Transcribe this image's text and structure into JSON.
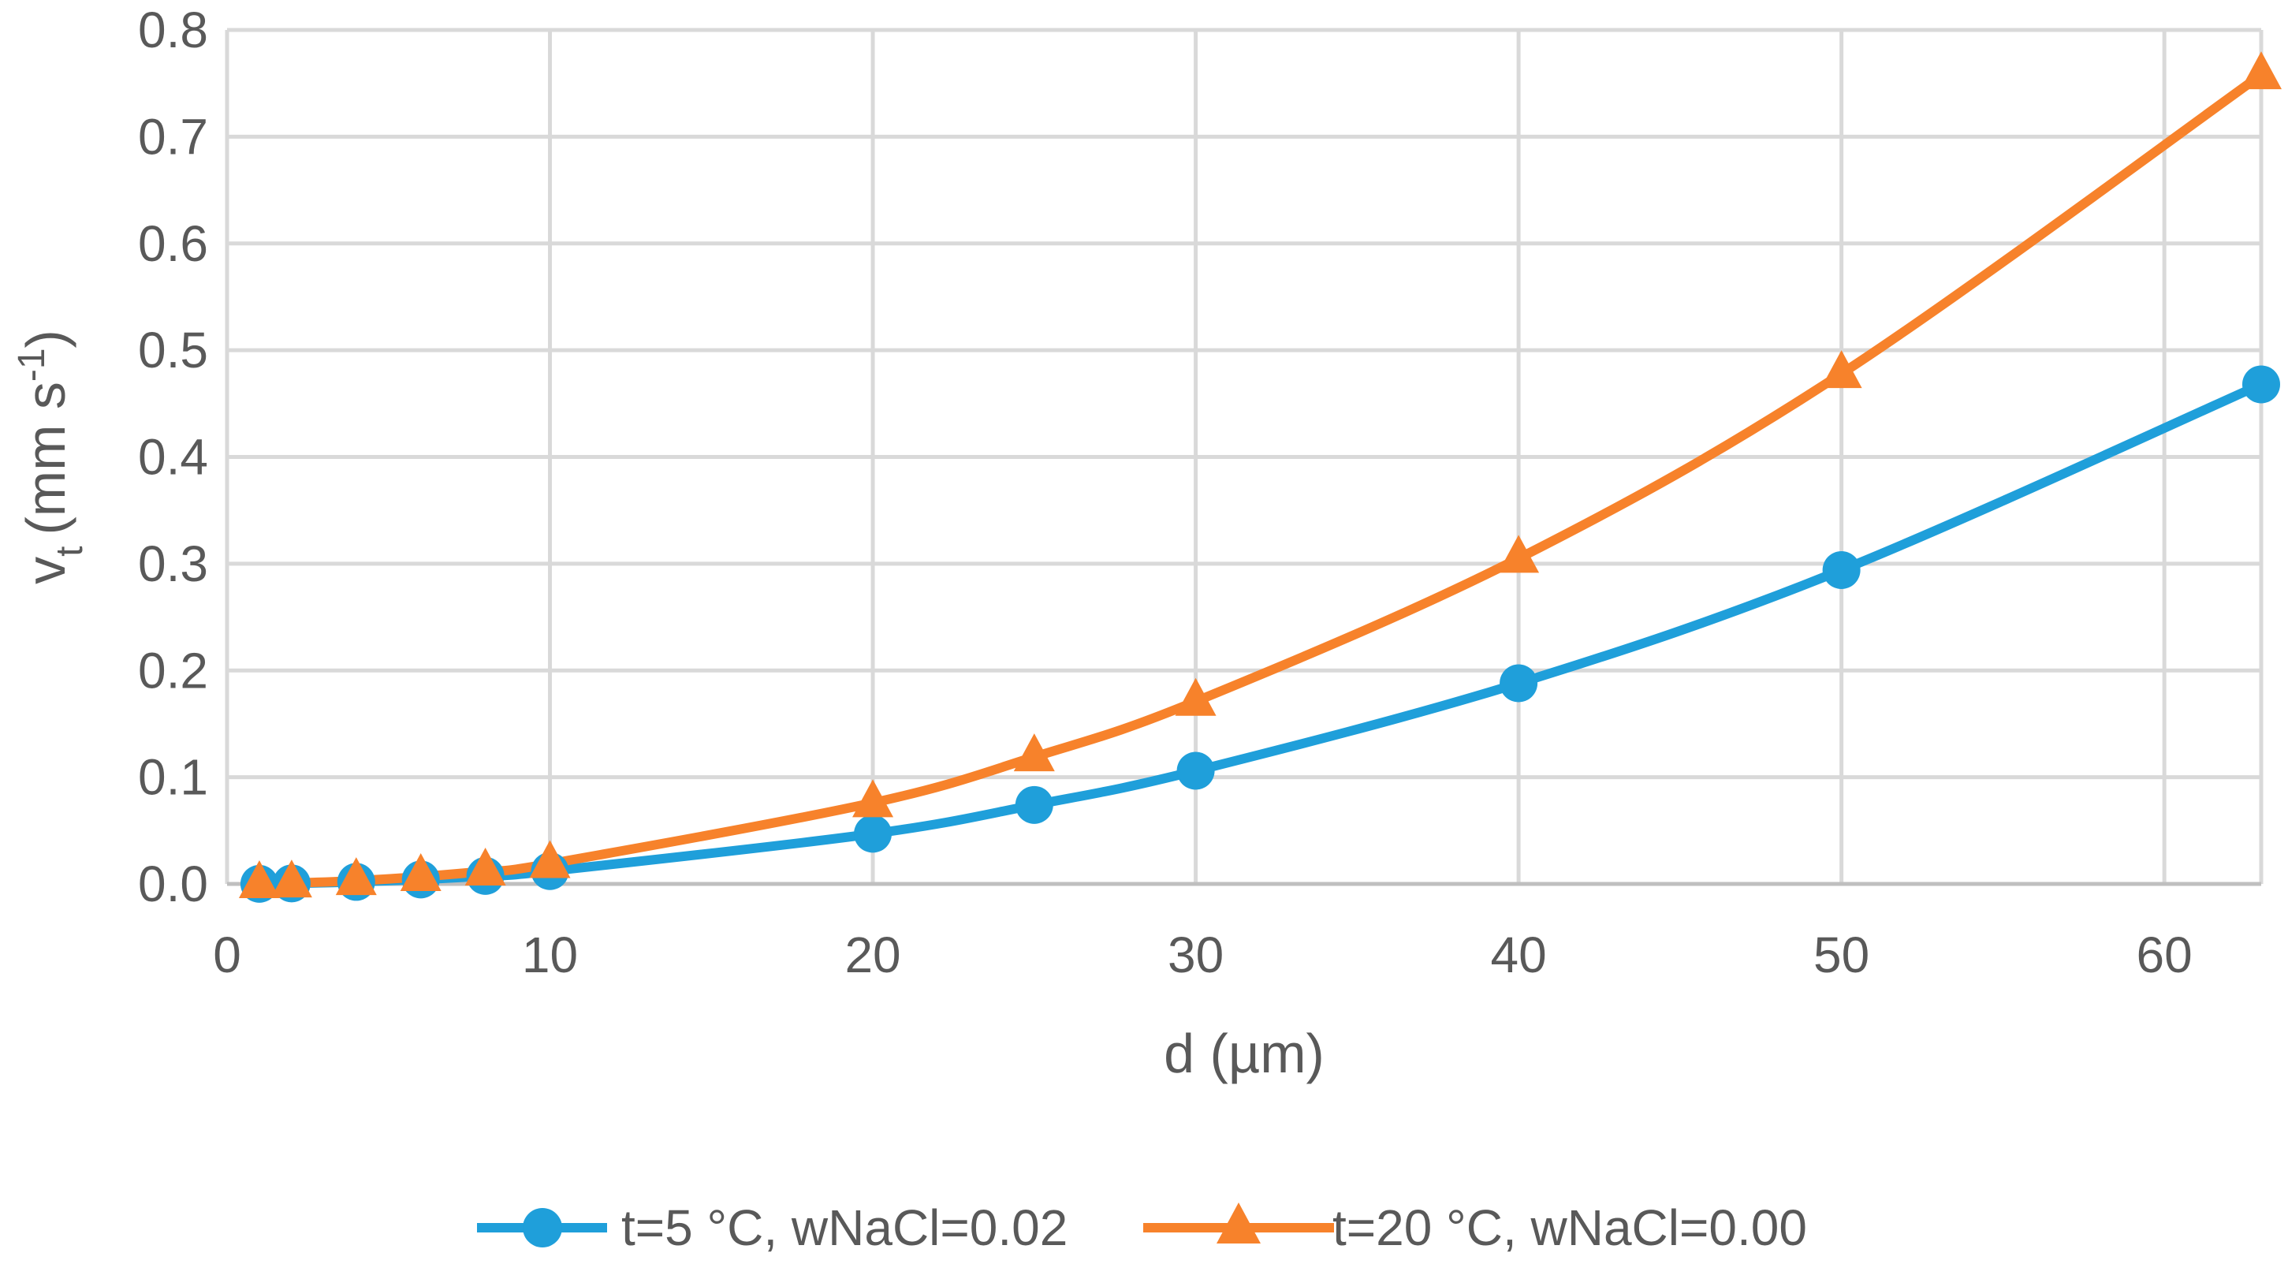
{
  "chart_data": {
    "type": "line",
    "xlabel": "d (µm)",
    "ylabel": {
      "main": "v",
      "sub": "t",
      "unit_prefix": "(mm s",
      "unit_sup": "-1",
      "unit_suffix": ")"
    },
    "xlim": [
      0,
      63
    ],
    "ylim": [
      0,
      0.8
    ],
    "xticks": [
      0,
      10,
      20,
      30,
      40,
      50,
      60
    ],
    "yticks": [
      0.0,
      0.1,
      0.2,
      0.3,
      0.4,
      0.5,
      0.6,
      0.7,
      0.8
    ],
    "ytick_labels": [
      "0.0",
      "0.1",
      "0.2",
      "0.3",
      "0.4",
      "0.5",
      "0.6",
      "0.7",
      "0.8"
    ],
    "grid": true,
    "legend_position": "bottom",
    "series": [
      {
        "name": "t=5 °C, wNaCl=0.02",
        "color": "#1f9fda",
        "marker": "circle",
        "x": [
          1,
          2,
          4,
          6,
          8,
          10,
          20,
          25,
          30,
          40,
          50,
          63
        ],
        "y": [
          0.0001,
          0.0005,
          0.0019,
          0.0042,
          0.0075,
          0.012,
          0.047,
          0.074,
          0.106,
          0.188,
          0.294,
          0.468
        ]
      },
      {
        "name": "t=20 °C, wNaCl=0.00",
        "color": "#f7822b",
        "marker": "triangle",
        "x": [
          1,
          2,
          4,
          6,
          8,
          10,
          20,
          25,
          30,
          40,
          50,
          63
        ],
        "y": [
          0.0002,
          0.0008,
          0.003,
          0.0068,
          0.012,
          0.019,
          0.076,
          0.119,
          0.171,
          0.305,
          0.478,
          0.758
        ]
      }
    ]
  }
}
